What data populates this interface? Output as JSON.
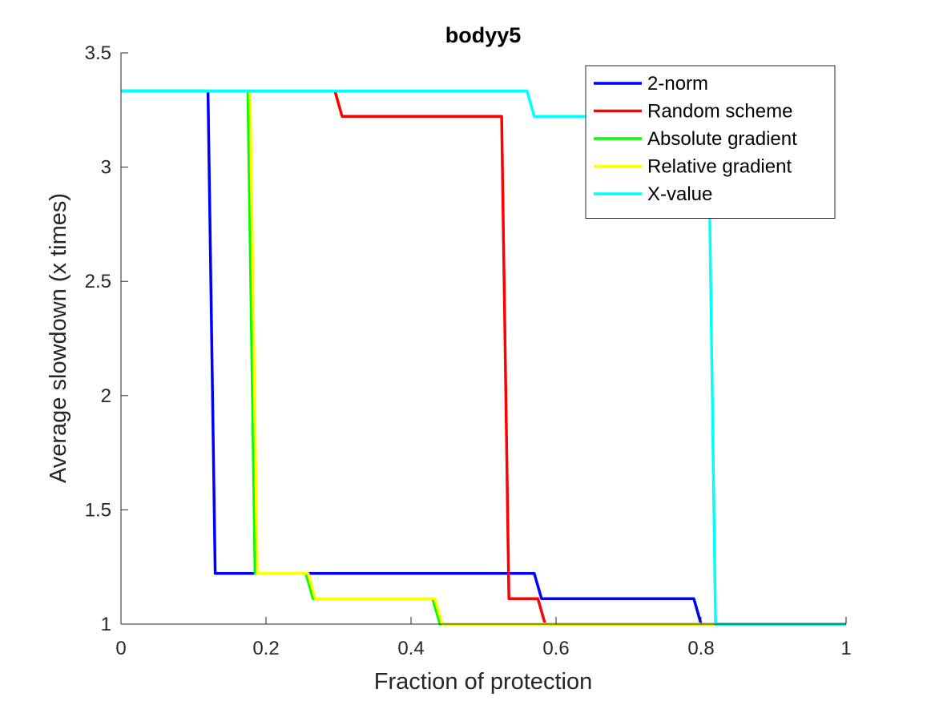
{
  "chart_data": {
    "type": "line",
    "title": "bodyy5",
    "xlabel": "Fraction of protection",
    "ylabel": "Average slowdown (x times)",
    "xlim": [
      0,
      1
    ],
    "ylim": [
      1,
      3.5
    ],
    "xticks": [
      0,
      0.2,
      0.4,
      0.6,
      0.8,
      1
    ],
    "xtick_labels": [
      "0",
      "0.2",
      "0.4",
      "0.6",
      "0.8",
      "1"
    ],
    "yticks": [
      1,
      1.5,
      2,
      2.5,
      3,
      3.5
    ],
    "ytick_labels": [
      "1",
      "1.5",
      "2",
      "2.5",
      "3",
      "3.5"
    ],
    "grid": false,
    "legend_position": "top-right",
    "series": [
      {
        "name": "2-norm",
        "color": "#0000ff",
        "x": [
          0,
          0.12,
          0.13,
          0.57,
          0.58,
          0.79,
          0.8,
          1
        ],
        "y": [
          3.333,
          3.333,
          1.222,
          1.222,
          1.111,
          1.111,
          1.0,
          1.0
        ]
      },
      {
        "name": "Random scheme",
        "color": "#ff0000",
        "x": [
          0,
          0.295,
          0.305,
          0.525,
          0.535,
          0.575,
          0.585,
          1
        ],
        "y": [
          3.333,
          3.333,
          3.222,
          3.222,
          1.111,
          1.111,
          1.0,
          1.0
        ]
      },
      {
        "name": "Absolute gradient",
        "color": "#00ff00",
        "x": [
          0,
          0.175,
          0.185,
          0.255,
          0.265,
          0.43,
          0.44,
          1
        ],
        "y": [
          3.333,
          3.333,
          1.222,
          1.222,
          1.111,
          1.111,
          1.0,
          1.0
        ]
      },
      {
        "name": "Relative gradient",
        "color": "#ffff00",
        "x": [
          0,
          0.178,
          0.188,
          0.258,
          0.268,
          0.433,
          0.443,
          1
        ],
        "y": [
          3.333,
          3.333,
          1.222,
          1.222,
          1.111,
          1.111,
          1.0,
          1.0
        ]
      },
      {
        "name": "X-value",
        "color": "#00ffff",
        "x": [
          0,
          0.56,
          0.57,
          0.81,
          0.82,
          1
        ],
        "y": [
          3.333,
          3.333,
          3.222,
          3.222,
          1.0,
          1.0
        ]
      }
    ]
  }
}
